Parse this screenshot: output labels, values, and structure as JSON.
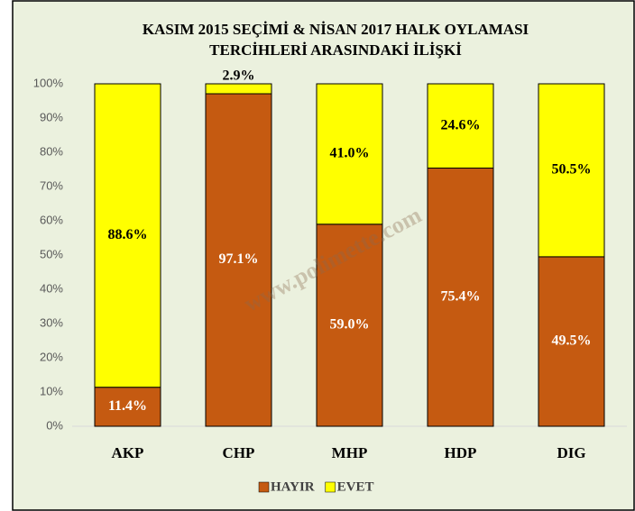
{
  "chart_data": {
    "type": "stacked_bar",
    "title": [
      "KASIM 2015 SEÇİMİ & NİSAN 2017 HALK OYLAMASI",
      "TERCİHLERİ ARASINDAKİ İLİŞKİ"
    ],
    "annotation": "www.polimette.com",
    "categories": [
      "AKP",
      "CHP",
      "MHP",
      "HDP",
      "DIG"
    ],
    "series": [
      {
        "name": "HAYIR",
        "color": "#c55a11",
        "values": [
          11.4,
          97.1,
          59.0,
          75.4,
          49.5
        ],
        "value_labels": [
          "11.4%",
          "97.1%",
          "59.0%",
          "75.4%",
          "49.5%"
        ]
      },
      {
        "name": "EVET",
        "color": "#ffff00",
        "values": [
          88.6,
          2.9,
          41.0,
          24.6,
          50.5
        ],
        "value_labels": [
          "88.6%",
          "2.9%",
          "41.0%",
          "24.6%",
          "50.5%"
        ]
      }
    ],
    "ylim": [
      0,
      100
    ],
    "yticks": [
      {
        "value": 0,
        "label": "0%"
      },
      {
        "value": 10,
        "label": "10%"
      },
      {
        "value": 20,
        "label": "20%"
      },
      {
        "value": 30,
        "label": "30%"
      },
      {
        "value": 40,
        "label": "40%"
      },
      {
        "value": 50,
        "label": "50%"
      },
      {
        "value": 60,
        "label": "60%"
      },
      {
        "value": 70,
        "label": "70%"
      },
      {
        "value": 80,
        "label": "80%"
      },
      {
        "value": 90,
        "label": "90%"
      },
      {
        "value": 100,
        "label": "100%"
      }
    ],
    "legend": "bottom",
    "grid": false
  }
}
